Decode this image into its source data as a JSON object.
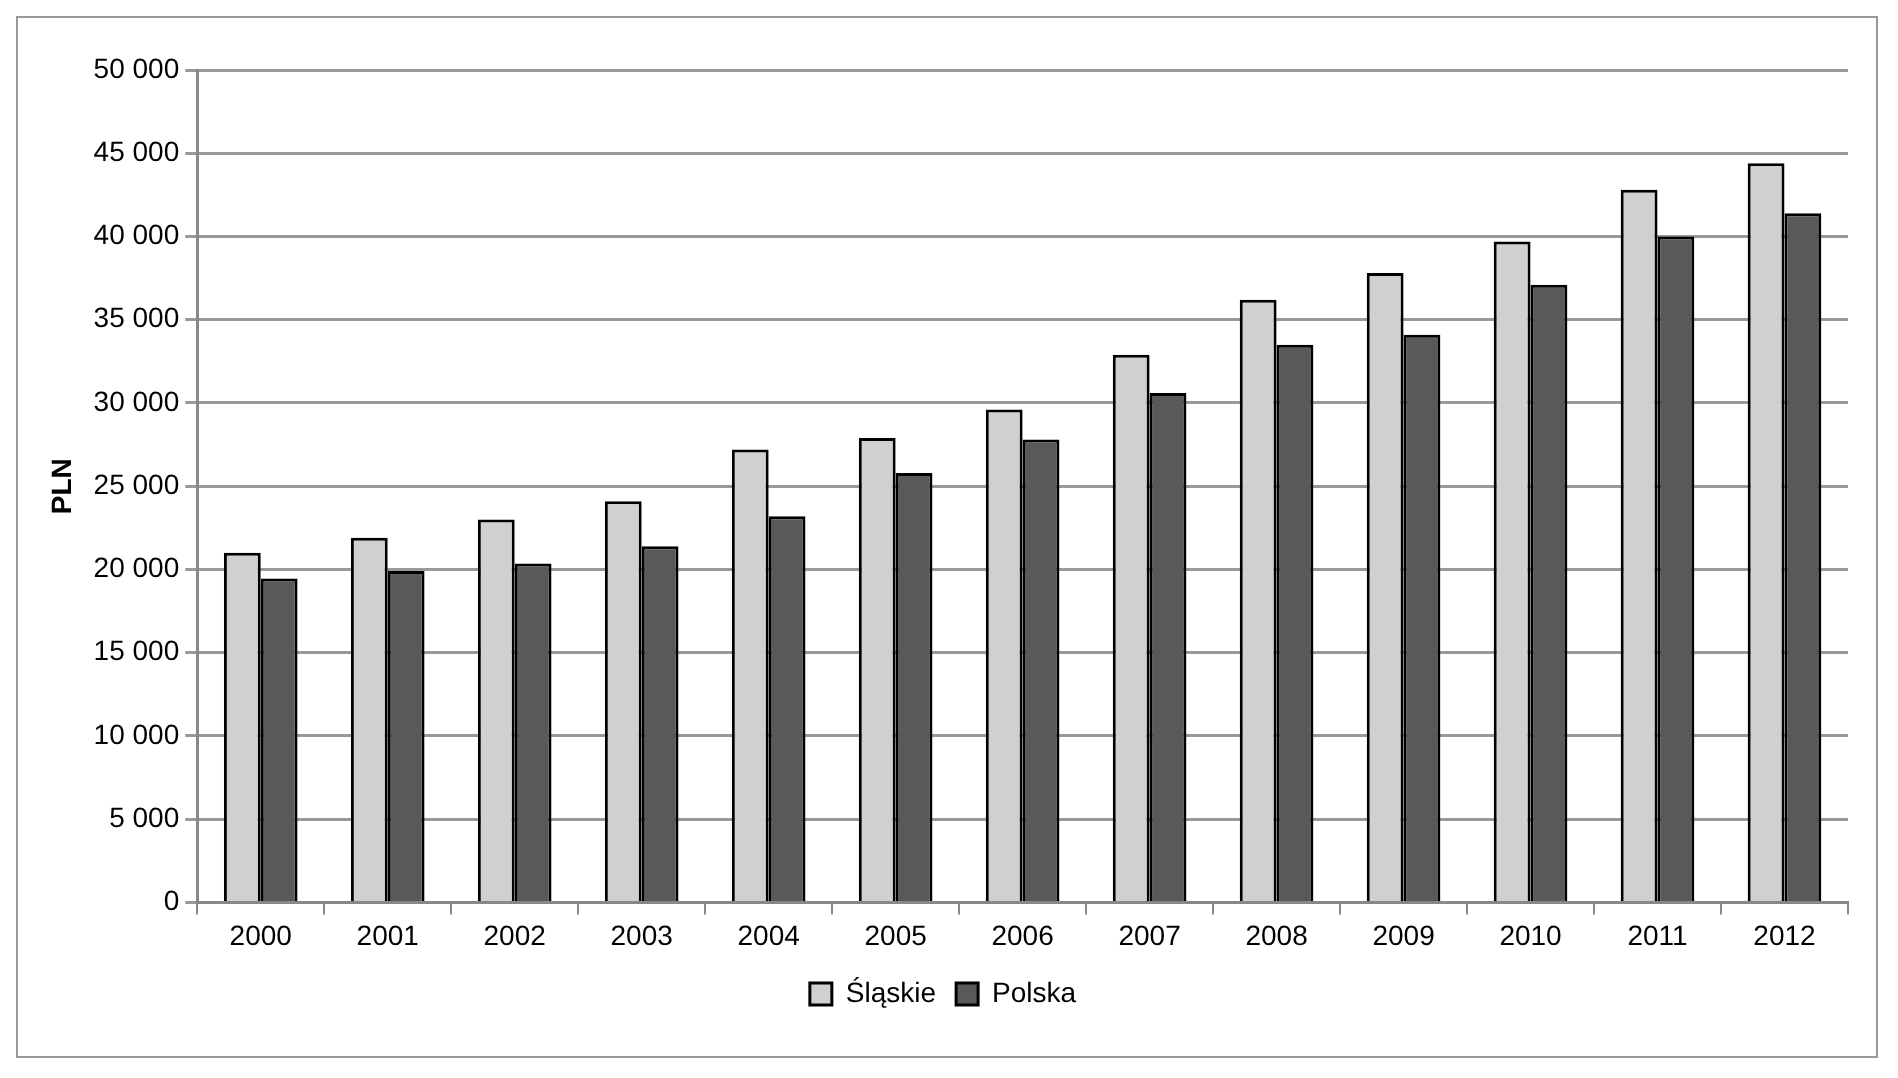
{
  "chart_data": {
    "type": "bar",
    "ylabel": "PLN",
    "categories": [
      "2000",
      "2001",
      "2002",
      "2003",
      "2004",
      "2005",
      "2006",
      "2007",
      "2008",
      "2009",
      "2010",
      "2011",
      "2012"
    ],
    "series": [
      {
        "name": "Śląskie",
        "color": "#d0d0d0",
        "values": [
          21000,
          21900,
          23000,
          24100,
          27200,
          27900,
          29600,
          32900,
          36200,
          37800,
          39700,
          42800,
          44400
        ]
      },
      {
        "name": "Polska",
        "color": "#595959",
        "values": [
          19450,
          19900,
          20350,
          21400,
          23200,
          25800,
          27800,
          30600,
          33500,
          34100,
          37100,
          40000,
          41400
        ]
      }
    ],
    "ylim": [
      0,
      50000
    ],
    "yticks": [
      {
        "value": 0,
        "label": "0"
      },
      {
        "value": 5000,
        "label": "5 000"
      },
      {
        "value": 10000,
        "label": "10 000"
      },
      {
        "value": 15000,
        "label": "15 000"
      },
      {
        "value": 20000,
        "label": "20 000"
      },
      {
        "value": 25000,
        "label": "25 000"
      },
      {
        "value": 30000,
        "label": "30 000"
      },
      {
        "value": 35000,
        "label": "35 000"
      },
      {
        "value": 40000,
        "label": "40 000"
      },
      {
        "value": 45000,
        "label": "45 000"
      },
      {
        "value": 50000,
        "label": "50 000"
      }
    ],
    "grid": "y",
    "legend": "bottom"
  }
}
